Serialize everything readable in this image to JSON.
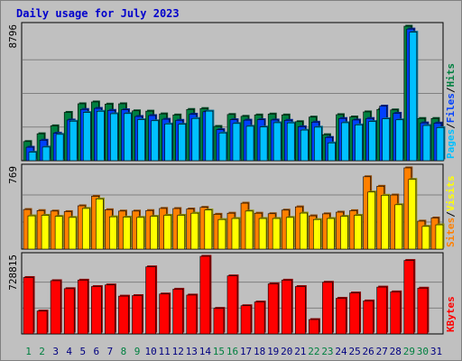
{
  "chart_data": {
    "type": "bar",
    "title": "Daily usage for July 2023",
    "categories": [
      "1",
      "2",
      "3",
      "4",
      "5",
      "6",
      "7",
      "8",
      "9",
      "10",
      "11",
      "12",
      "13",
      "14",
      "15",
      "16",
      "17",
      "18",
      "19",
      "20",
      "21",
      "22",
      "23",
      "24",
      "25",
      "26",
      "27",
      "28",
      "29",
      "30",
      "31"
    ],
    "weekend_days": [
      "1",
      "2",
      "8",
      "9",
      "15",
      "16",
      "22",
      "23",
      "29",
      "30"
    ],
    "colors": {
      "background": "#c0c0c0",
      "plot": "#c0c0c0",
      "grid": "#808080",
      "title": "#0000cc",
      "weekday_label": "#000080",
      "weekend_label": "#008040",
      "hits": "#008040",
      "files": "#0040ff",
      "pages": "#00c0ff",
      "visits": "#ff8000",
      "sites": "#ffff00",
      "kbytes": "#ff0000"
    },
    "panels": [
      {
        "id": "traffic",
        "ymax_label": "8796",
        "ymax": 8796,
        "legend": [
          {
            "text": "Pages",
            "color": "#00c0ff"
          },
          {
            "text": "/",
            "color": "#000000"
          },
          {
            "text": "Files",
            "color": "#0040ff"
          },
          {
            "text": "/",
            "color": "#000000"
          },
          {
            "text": "Hits",
            "color": "#008040"
          }
        ],
        "series": [
          {
            "name": "Hits",
            "color": "#008040",
            "values": [
              1250,
              1760,
              2280,
              3160,
              3720,
              3840,
              3700,
              3720,
              3260,
              3240,
              3060,
              2990,
              3350,
              3410,
              2240,
              3020,
              2900,
              2990,
              3050,
              2990,
              2550,
              2850,
              1700,
              3010,
              2860,
              3190,
              3350,
              3320,
              8796,
              2760,
              2760
            ]
          },
          {
            "name": "Files",
            "color": "#0040ff",
            "values": [
              880,
              1340,
              1800,
              2660,
              3350,
              3420,
              3290,
              3330,
              2890,
              2950,
              2710,
              2640,
              3040,
              3200,
              2030,
              2680,
              2650,
              2680,
              2660,
              2640,
              2220,
              2520,
              1520,
              2760,
              2660,
              2760,
              3570,
              3100,
              8610,
              2470,
              2460
            ]
          },
          {
            "name": "Pages",
            "color": "#00c0ff",
            "values": [
              550,
              890,
              1720,
              2580,
              3150,
              3230,
              3070,
              3080,
              2680,
              2610,
              2400,
              2380,
              2760,
              3240,
              1810,
              2430,
              2250,
              2200,
              2480,
              2470,
              2000,
              2190,
              1160,
              2480,
              2340,
              2560,
              2740,
              2670,
              8400,
              2300,
              2160
            ]
          }
        ]
      },
      {
        "id": "visitors",
        "ymax_label": "769",
        "ymax": 769,
        "legend": [
          {
            "text": "Sites",
            "color": "#ff8000"
          },
          {
            "text": "/",
            "color": "#000000"
          },
          {
            "text": "Visits",
            "color": "#ffff00"
          }
        ],
        "series": [
          {
            "name": "Sites",
            "color": "#ff8000",
            "values": [
              375,
              365,
              360,
              355,
              410,
              500,
              373,
              360,
              360,
              365,
              385,
              384,
              380,
              395,
              330,
              340,
              435,
              340,
              335,
              369,
              400,
              315,
              334,
              350,
              364,
              685,
              595,
              512,
              769,
              265,
              295
            ]
          },
          {
            "name": "Visits",
            "color": "#ffff00",
            "values": [
              315,
              320,
              310,
              300,
              385,
              475,
              306,
              303,
              300,
              310,
              320,
              320,
              340,
              370,
              280,
              290,
              360,
              290,
              290,
              300,
              341,
              280,
              290,
              310,
              320,
              540,
              510,
              420,
              660,
              215,
              230
            ]
          }
        ]
      },
      {
        "id": "kbytes",
        "ymax_label": "728815",
        "ymax": 728815,
        "legend": [
          {
            "text": "KBytes",
            "color": "#ff0000"
          }
        ],
        "series": [
          {
            "name": "KBytes",
            "color": "#ff0000",
            "values": [
              530000,
              215000,
              500000,
              425000,
              505000,
              445000,
              460000,
              355000,
              360000,
              630000,
              375000,
              420000,
              365000,
              728815,
              240000,
              545000,
              265000,
              300000,
              470000,
              505000,
              445000,
              135000,
              485000,
              335000,
              385000,
              310000,
              440000,
              395000,
              690000,
              430000,
              0
            ]
          }
        ]
      }
    ]
  }
}
